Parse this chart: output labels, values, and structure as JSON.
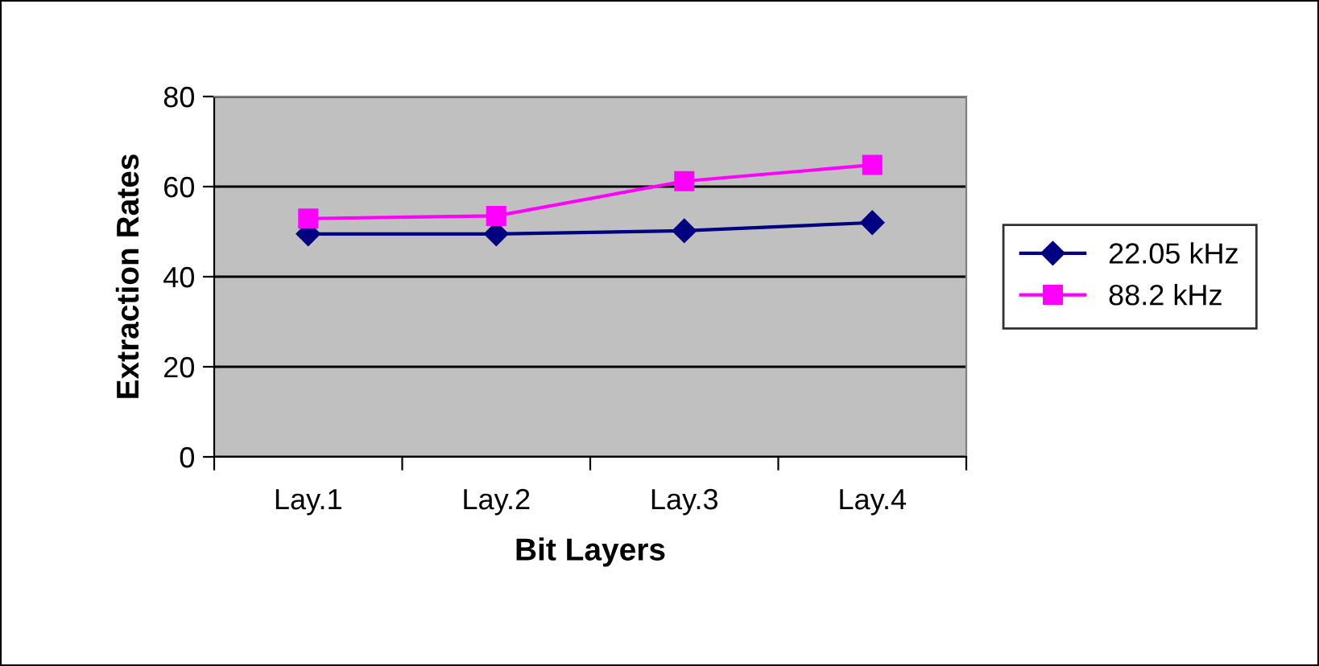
{
  "chart_data": {
    "type": "line",
    "xlabel": "Bit Layers",
    "ylabel": "Extraction Rates",
    "categories": [
      "Lay.1",
      "Lay.2",
      "Lay.3",
      "Lay.4"
    ],
    "series": [
      {
        "name": "22.05 kHz",
        "color": "#000080",
        "values": [
          49.5,
          49.5,
          50.2,
          52
        ],
        "marker": "diamond"
      },
      {
        "name": "88.2 kHz",
        "color": "#ff00ff",
        "values": [
          52.9,
          53.5,
          61.2,
          64.8
        ],
        "marker": "square"
      }
    ],
    "ylim": [
      0,
      80
    ],
    "yticks": [
      0,
      20,
      40,
      60,
      80
    ],
    "grid": "y",
    "legend": "right"
  }
}
